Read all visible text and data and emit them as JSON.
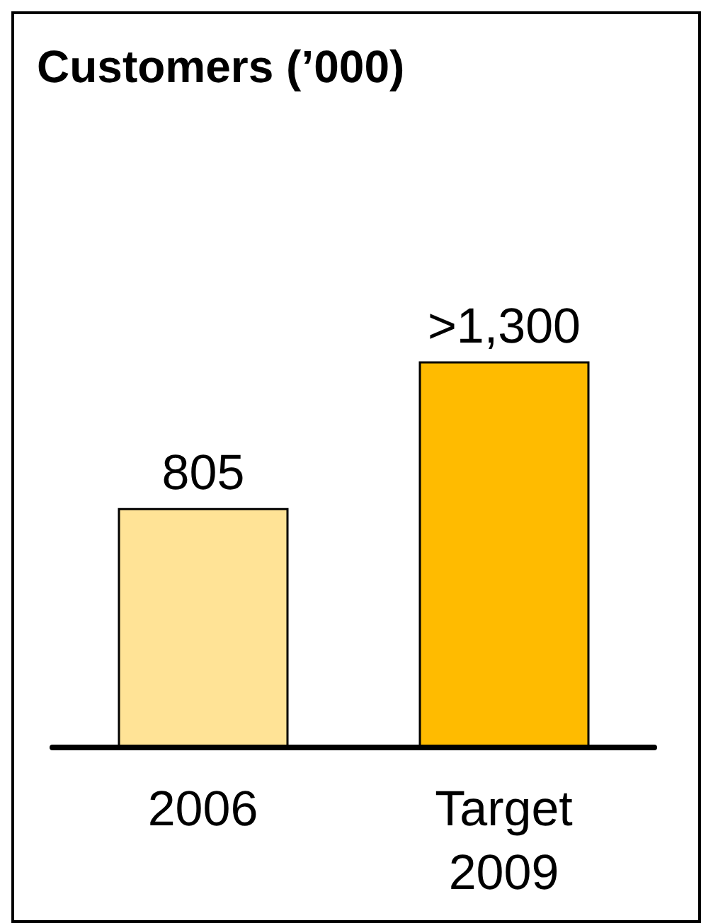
{
  "chart_data": {
    "type": "bar",
    "title": "Customers (’000)",
    "categories": [
      "2006",
      "Target 2009"
    ],
    "values": [
      805,
      1300
    ],
    "value_labels": [
      "805",
      ">1,300"
    ],
    "colors": [
      "#ffe396",
      "#ffbb00"
    ]
  }
}
